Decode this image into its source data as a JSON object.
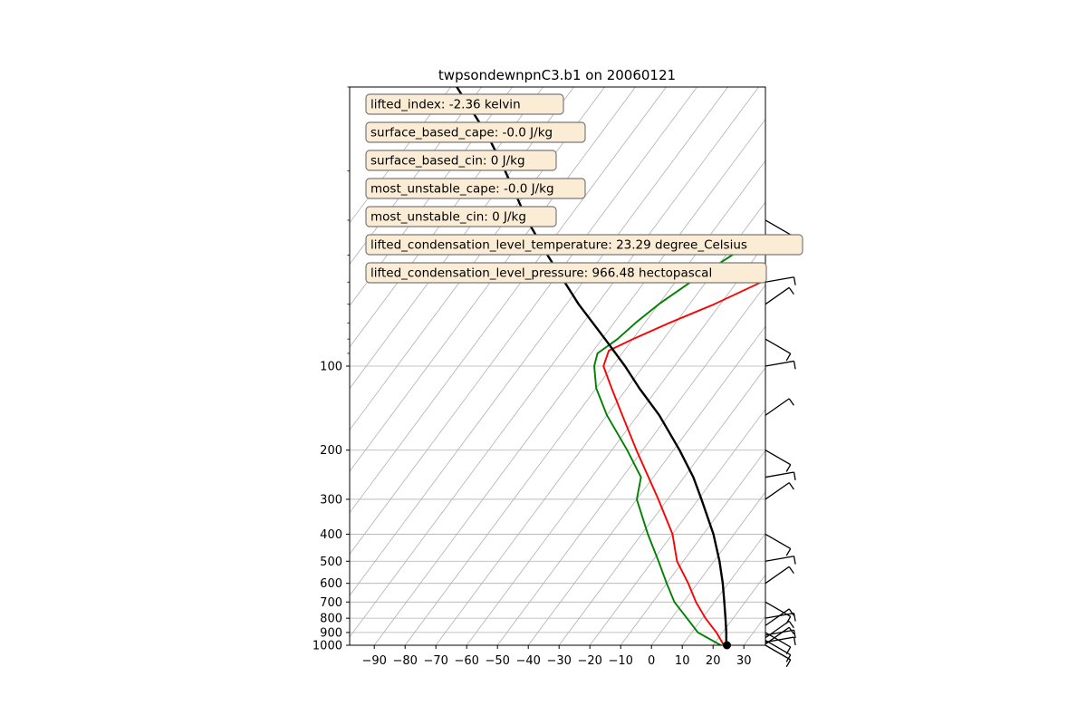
{
  "chart_data": {
    "type": "line",
    "title": "twpsondewnpnC3.b1 on 20060121",
    "xlabel": "",
    "ylabel": "",
    "xlim": [
      -98,
      37
    ],
    "pressure_scale": "log",
    "pressure_range": [
      1000,
      10
    ],
    "xticks": [
      -90,
      -80,
      -70,
      -60,
      -50,
      -40,
      -30,
      -20,
      -10,
      0,
      10,
      20,
      30
    ],
    "yticks": [
      100,
      200,
      300,
      400,
      500,
      600,
      700,
      800,
      900,
      1000
    ],
    "grid": true,
    "skewed_isotherms": true,
    "stats": [
      "lifted_index: -2.36 kelvin",
      "surface_based_cape: -0.0 J/kg",
      "surface_based_cin: 0 J/kg",
      "most_unstable_cape: -0.0 J/kg",
      "most_unstable_cin: 0 J/kg",
      "lifted_condensation_level_temperature: 23.29 degree_Celsius",
      "lifted_condensation_level_pressure: 966.48 hectopascal"
    ],
    "series": [
      {
        "color": "#ff0000",
        "pressure": [
          1000,
          900,
          800,
          700,
          600,
          500,
          400,
          300,
          200,
          150,
          120,
          100,
          88,
          80,
          70,
          60,
          50,
          40,
          33,
          30,
          28
        ],
        "values": [
          23.5,
          18,
          11,
          4,
          -3,
          -12,
          -20,
          -33,
          -52,
          -65,
          -75,
          -83,
          -85,
          -80,
          -72,
          -62,
          -52,
          -38,
          -28,
          -20,
          -18
        ]
      },
      {
        "color": "#008000",
        "pressure": [
          1000,
          900,
          800,
          700,
          600,
          500,
          400,
          300,
          250,
          200,
          150,
          120,
          100,
          90,
          80,
          70,
          60,
          50,
          40,
          30,
          25,
          20,
          15,
          12,
          10
        ],
        "values": [
          22.5,
          12,
          5,
          -3,
          -10,
          -18,
          -28,
          -40,
          -44,
          -55,
          -70,
          -80,
          -86,
          -88,
          -85,
          -83,
          -80,
          -75,
          -68,
          -58,
          -55,
          -48,
          -42,
          -38,
          -34
        ]
      },
      {
        "color": "#000000",
        "pressure": [
          1000,
          966.48,
          900,
          800,
          700,
          600,
          500,
          400,
          300,
          250,
          200,
          150,
          120,
          100,
          80,
          60,
          40,
          30,
          20,
          15,
          10
        ],
        "values": [
          24.5,
          23.3,
          21.2,
          17.5,
          13.2,
          8.2,
          1.8,
          -6.7,
          -19,
          -27,
          -38,
          -53,
          -66,
          -76,
          -89,
          -106,
          -128,
          -143,
          -162,
          -176,
          -198
        ]
      }
    ],
    "parcel_start": {
      "pressure": 1000,
      "temperature": 24.5
    },
    "wind_barbs_pressure": [
      1000,
      990,
      975,
      960,
      940,
      920,
      900,
      850,
      800,
      700,
      600,
      500,
      400,
      300,
      250,
      200,
      150,
      100,
      80,
      60,
      50,
      30
    ]
  }
}
